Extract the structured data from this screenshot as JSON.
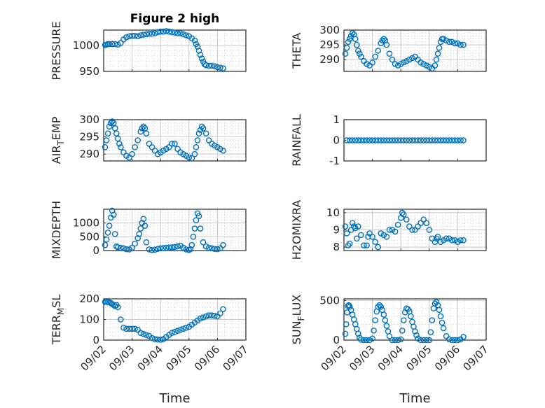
{
  "colors": {
    "marker": "#0072BD",
    "axis": "#262626",
    "grid": "#c8c8c8",
    "background": "#ffffff"
  },
  "chart_data": [
    {
      "type": "scatter",
      "title": "Figure 2 high",
      "ylabel": "PRESSURE",
      "ylim": [
        950,
        1030
      ],
      "yticks": [
        950,
        1000
      ],
      "xlim": [
        0,
        5
      ],
      "grid": true,
      "x": [
        0.05,
        0.1,
        0.15,
        0.2,
        0.3,
        0.4,
        0.5,
        0.6,
        0.7,
        0.8,
        0.9,
        1.0,
        1.1,
        1.2,
        1.3,
        1.4,
        1.5,
        1.6,
        1.7,
        1.8,
        1.9,
        2.0,
        2.1,
        2.2,
        2.3,
        2.4,
        2.5,
        2.6,
        2.7,
        2.8,
        2.9,
        3.0,
        3.1,
        3.2,
        3.25,
        3.3,
        3.35,
        3.4,
        3.45,
        3.5,
        3.55,
        3.6,
        3.7,
        3.8,
        3.9,
        4.0,
        4.1,
        4.2
      ],
      "y": [
        1001,
        1002,
        1003,
        1003,
        1003,
        1003,
        1002,
        1005,
        1012,
        1016,
        1018,
        1019,
        1019,
        1018,
        1020,
        1021,
        1022,
        1023,
        1023,
        1024,
        1026,
        1027,
        1027,
        1028,
        1027,
        1026,
        1025,
        1024,
        1024,
        1022,
        1020,
        1018,
        1014,
        1010,
        1003,
        998,
        990,
        982,
        975,
        969,
        964,
        962,
        961,
        961,
        960,
        958,
        957,
        956
      ]
    },
    {
      "type": "scatter",
      "ylabel": "THETA",
      "ylim": [
        286,
        300
      ],
      "yticks": [
        290,
        295,
        300
      ],
      "xlim": [
        0,
        5
      ],
      "grid": true,
      "x": [
        0.05,
        0.1,
        0.15,
        0.2,
        0.25,
        0.3,
        0.35,
        0.4,
        0.45,
        0.5,
        0.55,
        0.6,
        0.7,
        0.8,
        0.9,
        1.0,
        1.1,
        1.2,
        1.3,
        1.35,
        1.4,
        1.45,
        1.5,
        1.6,
        1.7,
        1.8,
        1.9,
        2.0,
        2.1,
        2.2,
        2.3,
        2.4,
        2.5,
        2.6,
        2.7,
        2.8,
        2.9,
        3.0,
        3.1,
        3.2,
        3.25,
        3.3,
        3.35,
        3.4,
        3.45,
        3.5,
        3.6,
        3.7,
        3.8,
        3.9,
        4.0,
        4.1,
        4.2
      ],
      "y": [
        292,
        294,
        296,
        297,
        298,
        299,
        298.5,
        297,
        295,
        293,
        292,
        291,
        289.5,
        288.5,
        288,
        289,
        291,
        293,
        295.5,
        296.5,
        297,
        296.5,
        295,
        292,
        290,
        288.5,
        288,
        288.5,
        289,
        289.5,
        290,
        290.5,
        291,
        290,
        289,
        288.5,
        288,
        287.5,
        287,
        288,
        290,
        292,
        294,
        296,
        297,
        297,
        296.5,
        296,
        296,
        295.5,
        295.5,
        295,
        295
      ]
    },
    {
      "type": "scatter",
      "ylabel": "AIR_TEMP",
      "ylim": [
        288,
        300
      ],
      "yticks": [
        290,
        295,
        300
      ],
      "xlim": [
        0,
        5
      ],
      "grid": true,
      "x": [
        0.05,
        0.1,
        0.15,
        0.2,
        0.25,
        0.3,
        0.35,
        0.4,
        0.45,
        0.5,
        0.55,
        0.6,
        0.7,
        0.8,
        0.9,
        1.0,
        1.1,
        1.2,
        1.3,
        1.35,
        1.4,
        1.45,
        1.5,
        1.6,
        1.7,
        1.8,
        1.9,
        2.0,
        2.1,
        2.2,
        2.3,
        2.4,
        2.5,
        2.6,
        2.7,
        2.8,
        2.9,
        3.0,
        3.1,
        3.2,
        3.25,
        3.3,
        3.35,
        3.4,
        3.45,
        3.5,
        3.6,
        3.7,
        3.8,
        3.9,
        4.0,
        4.1,
        4.2
      ],
      "y": [
        292,
        294,
        296,
        298,
        299,
        299.5,
        299,
        297.5,
        296,
        294.5,
        293,
        292,
        290.5,
        289.5,
        289,
        290,
        292,
        294,
        296.5,
        297.5,
        298,
        297.5,
        296,
        293,
        292,
        291,
        290,
        290.5,
        291,
        291.5,
        292,
        293,
        293,
        291.5,
        290.5,
        290,
        289.5,
        289,
        288.8,
        290,
        292,
        294,
        296,
        297,
        298,
        297.5,
        296,
        294,
        293,
        292.5,
        292,
        291.5,
        291
      ]
    },
    {
      "type": "scatter",
      "ylabel": "RAINFALL",
      "ylim": [
        -1,
        1
      ],
      "yticks": [
        -1,
        0,
        1
      ],
      "xlim": [
        0,
        5
      ],
      "grid": false,
      "x": [
        0.1,
        0.2,
        0.3,
        0.4,
        0.5,
        0.6,
        0.7,
        0.8,
        0.9,
        1.0,
        1.1,
        1.2,
        1.3,
        1.4,
        1.5,
        1.6,
        1.7,
        1.8,
        1.9,
        2.0,
        2.1,
        2.2,
        2.3,
        2.4,
        2.5,
        2.6,
        2.7,
        2.8,
        2.9,
        3.0,
        3.1,
        3.2,
        3.3,
        3.4,
        3.5,
        3.6,
        3.7,
        3.8,
        3.9,
        4.0,
        4.1,
        4.2
      ],
      "y": [
        0,
        0,
        0,
        0,
        0,
        0,
        0,
        0,
        0,
        0,
        0,
        0,
        0,
        0,
        0,
        0,
        0,
        0,
        0,
        0,
        0,
        0,
        0,
        0,
        0,
        0,
        0,
        0,
        0,
        0,
        0,
        0,
        0,
        0,
        0,
        0,
        0,
        0,
        0,
        0,
        0,
        0
      ]
    },
    {
      "type": "scatter",
      "ylabel": "MIXDEPTH",
      "ylim": [
        0,
        1500
      ],
      "yticks": [
        0,
        500,
        1000
      ],
      "xlim": [
        0,
        5
      ],
      "grid": true,
      "x": [
        0.05,
        0.1,
        0.15,
        0.2,
        0.25,
        0.3,
        0.35,
        0.4,
        0.45,
        0.5,
        0.6,
        0.7,
        0.8,
        0.9,
        1.0,
        1.1,
        1.2,
        1.25,
        1.3,
        1.35,
        1.4,
        1.45,
        1.5,
        1.6,
        1.7,
        1.8,
        1.9,
        2.0,
        2.1,
        2.2,
        2.3,
        2.4,
        2.5,
        2.6,
        2.7,
        2.8,
        2.9,
        3.0,
        3.05,
        3.1,
        3.15,
        3.2,
        3.25,
        3.3,
        3.35,
        3.4,
        3.5,
        3.6,
        3.7,
        3.8,
        3.9,
        4.0,
        4.1,
        4.2
      ],
      "y": [
        200,
        400,
        650,
        900,
        1200,
        1450,
        1300,
        600,
        150,
        120,
        100,
        80,
        50,
        40,
        100,
        250,
        450,
        600,
        800,
        1000,
        1150,
        900,
        300,
        40,
        20,
        30,
        60,
        80,
        90,
        100,
        110,
        120,
        130,
        150,
        180,
        100,
        40,
        20,
        50,
        200,
        500,
        800,
        1100,
        1350,
        1250,
        800,
        300,
        150,
        100,
        80,
        60,
        50,
        80,
        200
      ]
    },
    {
      "type": "scatter",
      "ylabel": "H2OMIXRA",
      "ylim": [
        7.8,
        10.2
      ],
      "yticks": [
        8,
        9,
        10
      ],
      "xlim": [
        0,
        5
      ],
      "grid": true,
      "x": [
        0.05,
        0.1,
        0.15,
        0.2,
        0.25,
        0.3,
        0.35,
        0.4,
        0.45,
        0.5,
        0.6,
        0.7,
        0.8,
        0.85,
        0.9,
        1.0,
        1.1,
        1.2,
        1.3,
        1.4,
        1.5,
        1.6,
        1.7,
        1.8,
        1.9,
        2.0,
        2.05,
        2.1,
        2.2,
        2.3,
        2.4,
        2.5,
        2.6,
        2.7,
        2.8,
        2.9,
        3.0,
        3.1,
        3.2,
        3.25,
        3.3,
        3.4,
        3.5,
        3.6,
        3.7,
        3.8,
        3.9,
        4.0,
        4.1,
        4.2
      ],
      "y": [
        9.2,
        8.8,
        8.1,
        8.2,
        9.0,
        9.4,
        9.2,
        9.1,
        8.5,
        9.2,
        8.7,
        8.1,
        8.1,
        8.6,
        8.8,
        8.6,
        8.3,
        8.0,
        8.8,
        8.7,
        8.6,
        9.0,
        9.0,
        8.9,
        9.3,
        9.7,
        10.0,
        9.9,
        9.6,
        9.2,
        9.0,
        9.0,
        9.2,
        9.4,
        9.6,
        9.4,
        9.0,
        8.5,
        8.3,
        8.5,
        8.6,
        8.3,
        8.4,
        8.5,
        8.5,
        8.4,
        8.4,
        8.3,
        8.4,
        8.4
      ]
    },
    {
      "type": "scatter",
      "ylabel": "TERR_MSL",
      "ylim": [
        0,
        200
      ],
      "yticks": [
        0,
        100,
        200
      ],
      "xlim": [
        0,
        5
      ],
      "xticklabels": [
        "09/02",
        "09/03",
        "09/04",
        "09/05",
        "09/06",
        "09/07"
      ],
      "xlabel": "Time",
      "grid": true,
      "x": [
        0.05,
        0.1,
        0.15,
        0.2,
        0.25,
        0.3,
        0.35,
        0.4,
        0.45,
        0.5,
        0.6,
        0.7,
        0.8,
        0.9,
        1.0,
        1.1,
        1.2,
        1.3,
        1.4,
        1.5,
        1.6,
        1.7,
        1.8,
        1.9,
        2.0,
        2.1,
        2.2,
        2.3,
        2.4,
        2.5,
        2.6,
        2.7,
        2.8,
        2.9,
        3.0,
        3.1,
        3.2,
        3.3,
        3.4,
        3.5,
        3.6,
        3.7,
        3.8,
        3.9,
        4.0,
        4.1,
        4.2
      ],
      "y": [
        185,
        185,
        185,
        183,
        180,
        175,
        170,
        165,
        170,
        160,
        100,
        60,
        55,
        55,
        55,
        55,
        50,
        35,
        30,
        25,
        20,
        10,
        5,
        3,
        2,
        5,
        15,
        25,
        35,
        40,
        45,
        50,
        55,
        60,
        65,
        75,
        85,
        95,
        105,
        110,
        115,
        120,
        120,
        118,
        115,
        130,
        150
      ]
    },
    {
      "type": "scatter",
      "ylabel": "SUN_FLUX",
      "ylim": [
        0,
        520
      ],
      "yticks": [
        0,
        500
      ],
      "xlim": [
        0,
        5
      ],
      "xticklabels": [
        "09/02",
        "09/03",
        "09/04",
        "09/05",
        "09/06",
        "09/07"
      ],
      "xlabel": "Time",
      "grid": true,
      "x": [
        0.05,
        0.08,
        0.11,
        0.14,
        0.17,
        0.2,
        0.25,
        0.3,
        0.35,
        0.4,
        0.45,
        0.5,
        0.55,
        0.6,
        0.7,
        0.8,
        0.9,
        1.0,
        1.05,
        1.1,
        1.15,
        1.2,
        1.25,
        1.3,
        1.35,
        1.4,
        1.45,
        1.5,
        1.55,
        1.6,
        1.7,
        1.8,
        1.9,
        2.0,
        2.05,
        2.1,
        2.15,
        2.2,
        2.25,
        2.3,
        2.35,
        2.4,
        2.45,
        2.5,
        2.55,
        2.6,
        2.7,
        2.8,
        2.9,
        3.0,
        3.05,
        3.1,
        3.15,
        3.2,
        3.25,
        3.3,
        3.35,
        3.4,
        3.45,
        3.5,
        3.6,
        3.7,
        3.8,
        3.9,
        4.0,
        4.1,
        4.2
      ],
      "y": [
        80,
        200,
        350,
        430,
        440,
        420,
        380,
        320,
        260,
        200,
        140,
        80,
        30,
        5,
        0,
        0,
        0,
        20,
        120,
        250,
        360,
        420,
        440,
        420,
        380,
        320,
        250,
        180,
        110,
        50,
        0,
        0,
        0,
        10,
        120,
        250,
        350,
        400,
        390,
        360,
        300,
        230,
        170,
        110,
        60,
        20,
        0,
        0,
        0,
        0,
        100,
        250,
        400,
        460,
        480,
        440,
        380,
        300,
        220,
        150,
        50,
        10,
        0,
        0,
        0,
        10,
        40
      ]
    }
  ]
}
